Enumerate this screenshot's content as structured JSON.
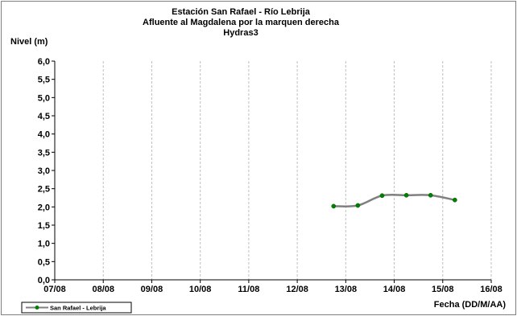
{
  "chart_data": {
    "type": "line",
    "title": [
      "Estación San Rafael - Río Lebrija",
      "Afluente al Magdalena por la marquen derecha",
      "Hydras3"
    ],
    "ylabel": "Nivel (m)",
    "xlabel": "Fecha (DD/M/AA)",
    "ylim": [
      0,
      6
    ],
    "y_ticks": [
      {
        "value": 0,
        "label": "0,0"
      },
      {
        "value": 0.5,
        "label": "0,5"
      },
      {
        "value": 1,
        "label": "1,0"
      },
      {
        "value": 1.5,
        "label": "1,5"
      },
      {
        "value": 2,
        "label": "2,0"
      },
      {
        "value": 2.5,
        "label": "2,5"
      },
      {
        "value": 3,
        "label": "3,0"
      },
      {
        "value": 3.5,
        "label": "3,5"
      },
      {
        "value": 4,
        "label": "4,0"
      },
      {
        "value": 4.5,
        "label": "4,5"
      },
      {
        "value": 5,
        "label": "5,0"
      },
      {
        "value": 5.5,
        "label": "5,5"
      },
      {
        "value": 6,
        "label": "6,0"
      }
    ],
    "xlim": [
      7,
      16
    ],
    "x_ticks": [
      {
        "value": 7,
        "label": "07/08"
      },
      {
        "value": 8,
        "label": "08/08"
      },
      {
        "value": 9,
        "label": "09/08"
      },
      {
        "value": 10,
        "label": "10/08"
      },
      {
        "value": 11,
        "label": "11/08"
      },
      {
        "value": 12,
        "label": "12/08"
      },
      {
        "value": 13,
        "label": "13/08"
      },
      {
        "value": 14,
        "label": "14/08"
      },
      {
        "value": 15,
        "label": "15/08"
      },
      {
        "value": 16,
        "label": "16/08"
      }
    ],
    "grid": "vertical",
    "legend_position": "bottom-left",
    "series": [
      {
        "name": "San Rafael - Lebrija",
        "line_color": "#808080",
        "marker_color": "#008000",
        "x": [
          12.75,
          13.25,
          13.75,
          14.25,
          14.75,
          15.25
        ],
        "y": [
          2.02,
          2.04,
          2.31,
          2.32,
          2.32,
          2.19
        ]
      }
    ]
  }
}
